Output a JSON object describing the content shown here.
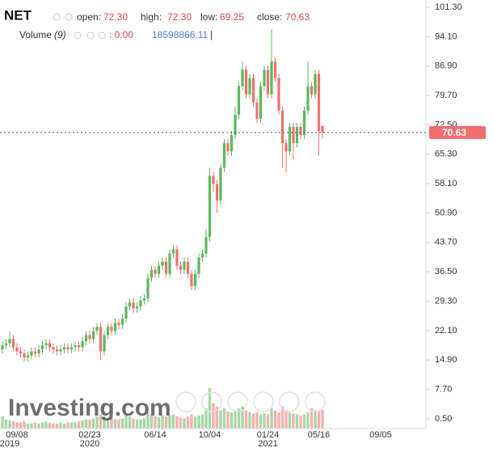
{
  "header": {
    "symbol": "NET",
    "open_label": "open:",
    "open": "72.30",
    "high_label": "high:",
    "high": "72.30",
    "low_label": "low:",
    "low": "69.25",
    "close_label": "close:",
    "close": "70.63",
    "volume_label": "Volume",
    "volume_period": "(9)",
    "volume_ma": ": 0.00",
    "volume_value": "18598866.11",
    "cursor": "|"
  },
  "logo": "Investing.com",
  "chart_data": {
    "type": "candlestick",
    "categories": [
      null,
      null,
      null,
      null,
      "09/08",
      null,
      null,
      null,
      null,
      null,
      null,
      null,
      null,
      null,
      null,
      null,
      null,
      null,
      null,
      null,
      null,
      null,
      null,
      null,
      "02/23",
      null,
      null,
      null,
      null,
      null,
      null,
      null,
      null,
      null,
      null,
      null,
      null,
      null,
      null,
      null,
      null,
      null,
      "06/14",
      null,
      null,
      null,
      null,
      null,
      null,
      null,
      null,
      null,
      null,
      null,
      null,
      null,
      null,
      "10/04",
      null,
      null,
      null,
      null,
      null,
      null,
      null,
      null,
      null,
      null,
      null,
      null,
      null,
      null,
      null,
      "01/24",
      null,
      null,
      null,
      null,
      null,
      null,
      null,
      null,
      null,
      null,
      null,
      null,
      null,
      "05/16",
      null,
      null,
      null,
      null,
      null,
      null,
      null,
      null,
      null,
      null,
      null,
      null,
      null,
      null,
      null,
      null,
      "09/05"
    ],
    "years": [
      null,
      null,
      "2019",
      null,
      null,
      null,
      null,
      null,
      null,
      null,
      null,
      null,
      null,
      null,
      null,
      null,
      null,
      null,
      null,
      null,
      null,
      null,
      null,
      null,
      "2020",
      null,
      null,
      null,
      null,
      null,
      null,
      null,
      null,
      null,
      null,
      null,
      null,
      null,
      null,
      null,
      null,
      null,
      null,
      null,
      null,
      null,
      null,
      null,
      null,
      null,
      null,
      null,
      null,
      null,
      null,
      null,
      null,
      null,
      null,
      null,
      null,
      null,
      null,
      null,
      null,
      null,
      null,
      null,
      null,
      null,
      null,
      null,
      null,
      "2021",
      null,
      null,
      null,
      null,
      null,
      null,
      null,
      null,
      null,
      null,
      null,
      null,
      null,
      null,
      null,
      null,
      null,
      null,
      null,
      null,
      null,
      null,
      null,
      null,
      null,
      null,
      null,
      null,
      null,
      null,
      null
    ],
    "open": [
      17.5,
      18.5,
      19,
      20,
      18,
      17,
      16.5,
      15.5,
      16,
      17,
      16.5,
      17.5,
      18.5,
      19,
      18,
      17.5,
      17,
      17.5,
      18,
      17.5,
      18,
      18.5,
      18,
      19.5,
      21,
      20,
      22,
      23,
      17,
      21,
      23,
      22,
      24,
      23.5,
      25,
      28,
      29,
      27.5,
      28,
      29.5,
      30,
      35,
      37,
      36,
      38,
      39,
      36,
      41,
      42,
      38,
      37,
      39,
      36,
      33,
      36,
      40,
      41,
      45,
      60,
      58,
      54,
      62,
      68,
      66,
      70,
      75,
      82,
      86,
      80,
      84,
      78,
      74,
      82,
      86,
      80,
      88,
      84,
      76,
      68,
      66,
      72,
      68,
      72,
      70,
      76,
      82,
      80,
      85,
      72.3,
      null,
      null,
      null,
      null,
      null,
      null,
      null,
      null,
      null,
      null,
      null,
      null,
      null,
      null,
      null,
      null
    ],
    "high": [
      19.5,
      20,
      22,
      21,
      19,
      18,
      17.5,
      17,
      18,
      18,
      18.5,
      19.5,
      20,
      20,
      19,
      18.5,
      18.5,
      19,
      19,
      19,
      19.5,
      19.5,
      20.5,
      22,
      22,
      23,
      24,
      24,
      22,
      24,
      24,
      25,
      25,
      26,
      29,
      30,
      30,
      29,
      30.5,
      31,
      36,
      38,
      38,
      39,
      40,
      40,
      42,
      43,
      43,
      39,
      40,
      40,
      37,
      37,
      41,
      42,
      47,
      62,
      61,
      59,
      63,
      69,
      69,
      71,
      77,
      83,
      88,
      87,
      85,
      85,
      79,
      83,
      87,
      87,
      96,
      89,
      85,
      77,
      69,
      73,
      73,
      73,
      73,
      77,
      88,
      83,
      86,
      86,
      72.3,
      null,
      null,
      null,
      null,
      null,
      null,
      null,
      null,
      null,
      null,
      null,
      null,
      null,
      null,
      null,
      null
    ],
    "low": [
      16.5,
      17.5,
      18,
      17,
      16,
      15.5,
      14.5,
      14.5,
      15,
      15.5,
      15.5,
      16.5,
      17.5,
      17,
      16.5,
      16,
      16,
      16.5,
      16.5,
      16.5,
      17,
      17,
      17,
      18.5,
      19,
      19,
      21,
      15,
      16,
      20,
      21,
      21,
      22.5,
      22.5,
      24,
      27,
      26.5,
      26.5,
      27,
      28.5,
      29,
      34,
      35,
      35,
      37,
      35,
      35,
      40,
      37,
      36,
      36,
      35,
      32,
      32,
      35,
      39,
      40,
      44,
      56,
      51,
      53,
      61,
      65,
      65,
      69,
      74,
      81,
      79,
      79,
      77,
      73,
      73,
      81,
      79,
      79,
      83,
      75,
      62,
      61,
      65,
      64,
      67,
      69,
      69,
      75,
      79,
      79,
      65,
      69.25,
      null,
      null,
      null,
      null,
      null,
      null,
      null,
      null,
      null,
      null,
      null,
      null,
      null,
      null,
      null,
      null
    ],
    "close": [
      18.5,
      19,
      20,
      18,
      17,
      16.5,
      15.5,
      16,
      17,
      16.5,
      17.5,
      18.5,
      19,
      18,
      17.5,
      17,
      17.5,
      18,
      17.5,
      18,
      18.5,
      18,
      19.5,
      21,
      20,
      22,
      23,
      17,
      21,
      23,
      22,
      24,
      23.5,
      25,
      28,
      29,
      27.5,
      28,
      29.5,
      30,
      35,
      37,
      36,
      38,
      39,
      36,
      41,
      42,
      38,
      37,
      39,
      36,
      33,
      36,
      40,
      41,
      45,
      60,
      58,
      54,
      62,
      68,
      66,
      70,
      75,
      82,
      86,
      80,
      84,
      78,
      74,
      82,
      86,
      80,
      88,
      84,
      76,
      68,
      66,
      72,
      68,
      72,
      70,
      76,
      82,
      80,
      85,
      71,
      70.63,
      null,
      null,
      null,
      null,
      null,
      null,
      null,
      null,
      null,
      null,
      null,
      null,
      null,
      null,
      null,
      null
    ],
    "volume": [
      12000000,
      9000000,
      8000000,
      7000000,
      6000000,
      6000000,
      7000000,
      5000000,
      5000000,
      6000000,
      5000000,
      6000000,
      7000000,
      6000000,
      5000000,
      5000000,
      6000000,
      5000000,
      6000000,
      6000000,
      6000000,
      7000000,
      8000000,
      9000000,
      9000000,
      10000000,
      12000000,
      14000000,
      12000000,
      11000000,
      10000000,
      9000000,
      9000000,
      10000000,
      14000000,
      12000000,
      10000000,
      9000000,
      9000000,
      10000000,
      16000000,
      14000000,
      12000000,
      11000000,
      13000000,
      12000000,
      13000000,
      14000000,
      12000000,
      11000000,
      10000000,
      12000000,
      14000000,
      12000000,
      13000000,
      14000000,
      20000000,
      40000000,
      25000000,
      22000000,
      18000000,
      20000000,
      17000000,
      16000000,
      18000000,
      20000000,
      22000000,
      18000000,
      16000000,
      15000000,
      16000000,
      14000000,
      15000000,
      14000000,
      20000000,
      18000000,
      16000000,
      22000000,
      18000000,
      16000000,
      15000000,
      14000000,
      13000000,
      14000000,
      16000000,
      20000000,
      18000000,
      17000000,
      18598866.11,
      null,
      null,
      null,
      null,
      null,
      null,
      null,
      null,
      null,
      null,
      null,
      null,
      null,
      null,
      null,
      null
    ],
    "up_color": "#5cb85c",
    "down_color": "#f07070",
    "last_price": 70.63,
    "last_price_color": "#f26d6d",
    "ylim": [
      -1.9,
      103.1
    ],
    "yticks": [
      {
        "value": 101.3,
        "label": "101.30"
      },
      {
        "value": 94.1,
        "label": "94.10"
      },
      {
        "value": 86.9,
        "label": "86.90"
      },
      {
        "value": 79.7,
        "label": "79.70"
      },
      {
        "value": 72.5,
        "label": "72.50"
      },
      {
        "value": 65.3,
        "label": "65.30"
      },
      {
        "value": 58.1,
        "label": "58.10"
      },
      {
        "value": 50.9,
        "label": "50.90"
      },
      {
        "value": 43.7,
        "label": "43.70"
      },
      {
        "value": 36.5,
        "label": "36.50"
      },
      {
        "value": 29.3,
        "label": "29.30"
      },
      {
        "value": 22.1,
        "label": "22.10"
      },
      {
        "value": 14.9,
        "label": "14.90"
      },
      {
        "value": 7.7,
        "label": "7.70"
      },
      {
        "value": 0.5,
        "label": "0.50"
      }
    ],
    "grid": false
  }
}
